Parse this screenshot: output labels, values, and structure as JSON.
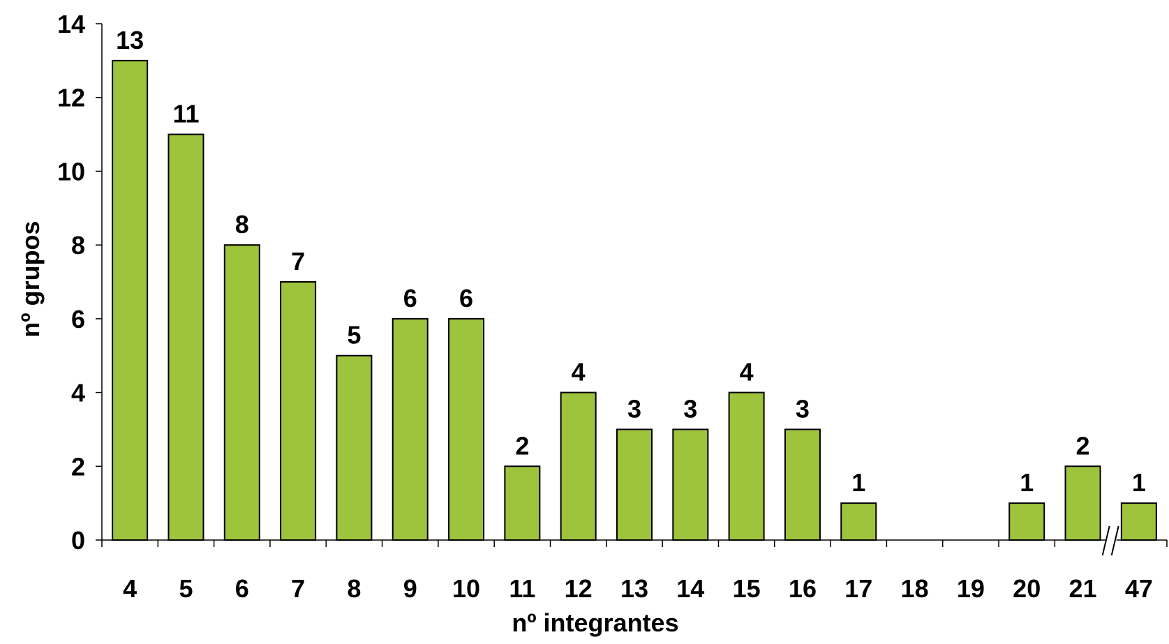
{
  "chart_data": {
    "type": "bar",
    "title": "",
    "xlabel": "nº integrantes",
    "ylabel": "nº grupos",
    "categories": [
      "4",
      "5",
      "6",
      "7",
      "8",
      "9",
      "10",
      "11",
      "12",
      "13",
      "14",
      "15",
      "16",
      "17",
      "18",
      "19",
      "20",
      "21",
      "47"
    ],
    "values": [
      13,
      11,
      8,
      7,
      5,
      6,
      6,
      2,
      4,
      3,
      3,
      4,
      3,
      1,
      null,
      null,
      1,
      2,
      1
    ],
    "data_labels": [
      "13",
      "11",
      "8",
      "7",
      "5",
      "6",
      "6",
      "2",
      "4",
      "3",
      "3",
      "4",
      "3",
      "1",
      "",
      "",
      "1",
      "2",
      "1"
    ],
    "ylim": [
      0,
      14
    ],
    "yticks": [
      "0",
      "2",
      "4",
      "6",
      "8",
      "10",
      "12",
      "14"
    ],
    "axis_break": "between 21 and 47",
    "bar_color": "#9DC43C",
    "bar_edge_color": "#000000",
    "grid": false,
    "legend": "none"
  }
}
